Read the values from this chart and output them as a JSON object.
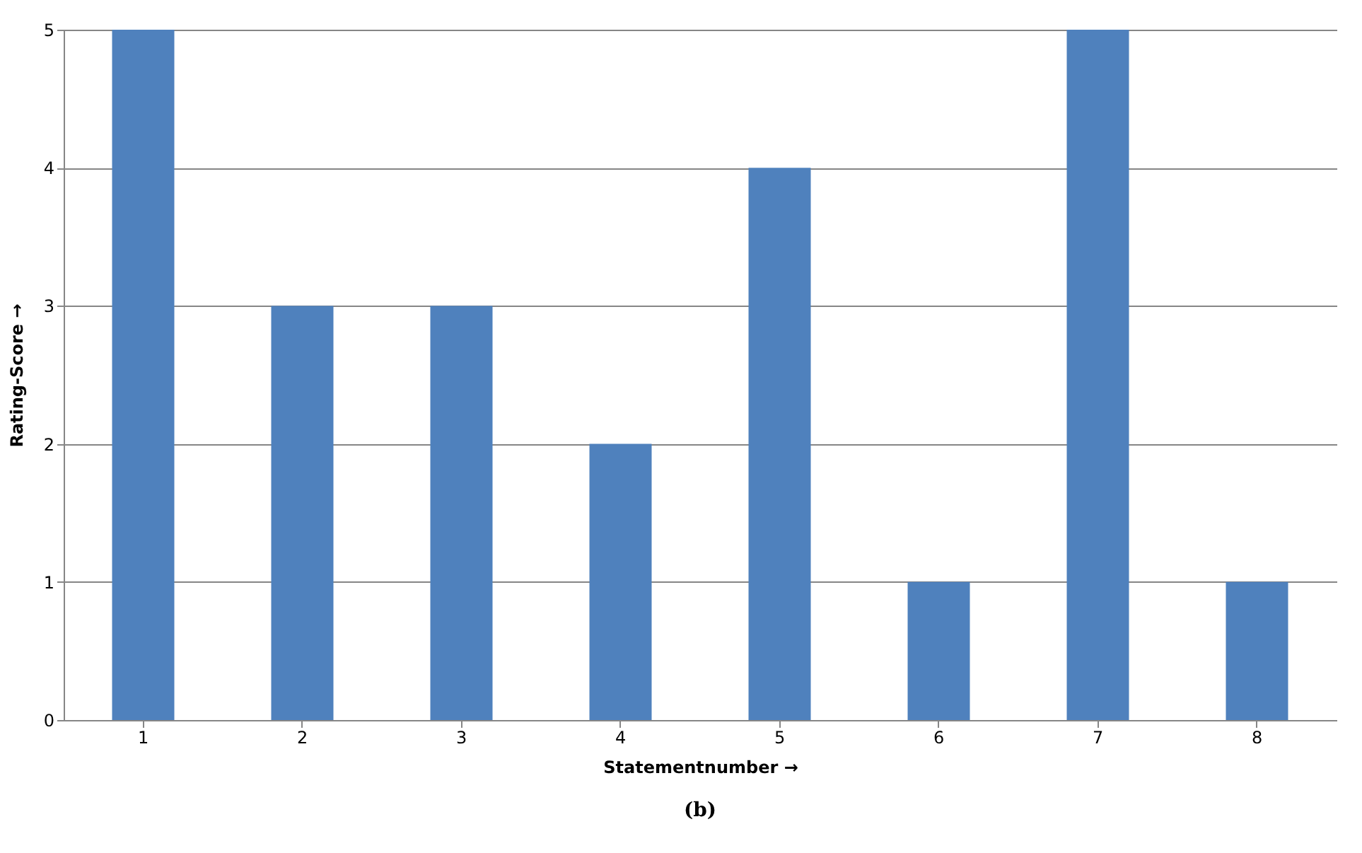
{
  "chart_data": {
    "type": "bar",
    "categories": [
      "1",
      "2",
      "3",
      "4",
      "5",
      "6",
      "7",
      "8"
    ],
    "values": [
      5,
      3,
      3,
      2,
      4,
      1,
      5,
      1
    ],
    "color": "#4f81bd",
    "xlabel": "Statementnumber →",
    "ylabel": "Rating-Score →",
    "annotations": [
      "(b)"
    ],
    "ylim": [
      0,
      5
    ],
    "yticks": [
      0,
      1,
      2,
      3,
      4,
      5
    ],
    "grid": "y"
  }
}
